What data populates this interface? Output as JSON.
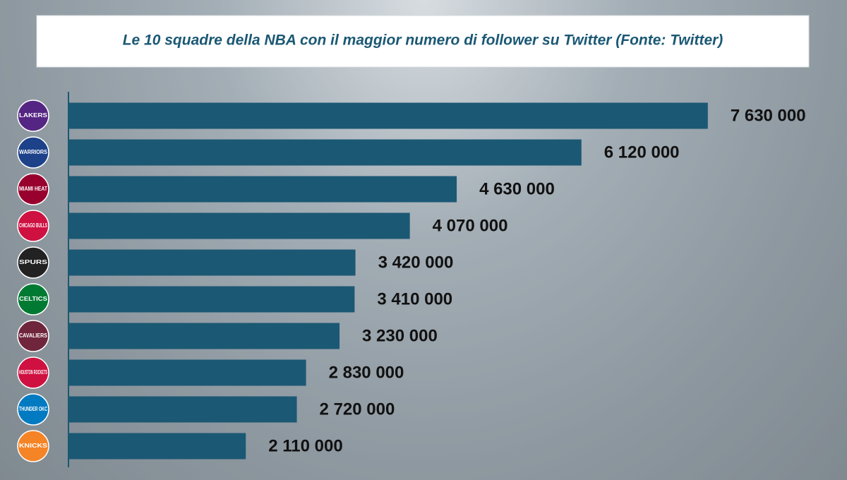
{
  "chart_data": {
    "type": "bar",
    "orientation": "horizontal",
    "title": "Le 10 squadre della NBA con il maggior numero di follower su Twitter (Fonte: Twitter)",
    "categories": [
      "LAKERS",
      "WARRIORS",
      "MIAMI HEAT",
      "CHICAGO BULLS",
      "SPURS",
      "CELTICS",
      "CAVALIERS",
      "HOUSTON ROCKETS",
      "THUNDER OKC",
      "KNICKS"
    ],
    "values": [
      7630000,
      6120000,
      4630000,
      4070000,
      3420000,
      3410000,
      3230000,
      2830000,
      2720000,
      2110000
    ],
    "value_labels": [
      "7 630 000",
      "6 120 000",
      "4 630 000",
      "4 070 000",
      "3 420 000",
      "3 410 000",
      "3 230 000",
      "2 830 000",
      "2 720 000",
      "2 110 000"
    ],
    "color": "#1b5874",
    "logo_colors": [
      "#552583",
      "#1d428a",
      "#98002e",
      "#ce1141",
      "#222222",
      "#007a33",
      "#6f263d",
      "#ce1141",
      "#007ac1",
      "#f58426"
    ],
    "xlim": [
      0,
      8500000
    ]
  }
}
